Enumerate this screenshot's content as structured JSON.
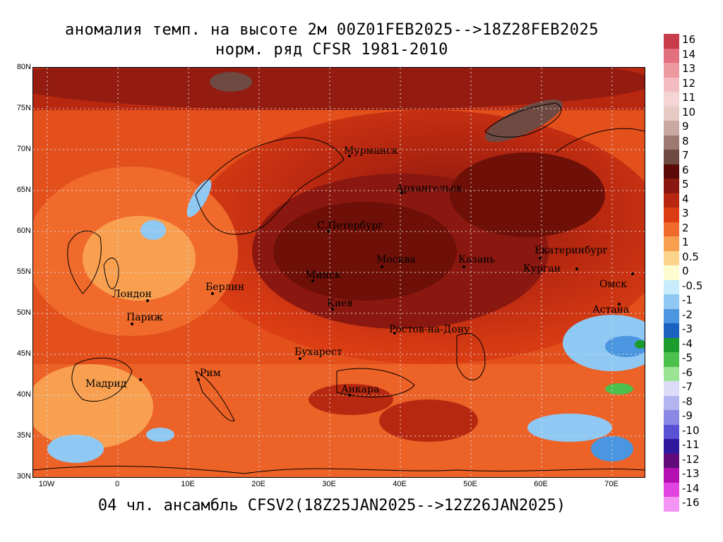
{
  "title_line1": "аномалия темп. на высоте 2м 00Z01FEB2025-->18Z28FEB2025",
  "title_line2": "норм. ряд CFSR 1981-2010",
  "footer": "04 чл. ансамбль CFSV2(18Z25JAN2025-->12Z26JAN2025)",
  "lat_labels": [
    "80N",
    "75N",
    "70N",
    "65N",
    "60N",
    "55N",
    "50N",
    "45N",
    "40N",
    "35N",
    "30N"
  ],
  "lon_labels": [
    "10W",
    "0",
    "10E",
    "20E",
    "30E",
    "40E",
    "50E",
    "60E",
    "70E"
  ],
  "cities": [
    {
      "name": "Мурманск"
    },
    {
      "name": "Архангельск"
    },
    {
      "name": "С.Петербург"
    },
    {
      "name": "Москва"
    },
    {
      "name": "Казань"
    },
    {
      "name": "Екатеринбург"
    },
    {
      "name": "Курган"
    },
    {
      "name": "Омск"
    },
    {
      "name": "Астана"
    },
    {
      "name": "Минск"
    },
    {
      "name": "Берлин"
    },
    {
      "name": "Лондон"
    },
    {
      "name": "Париж"
    },
    {
      "name": "Киев"
    },
    {
      "name": "Ростов-на-Дону"
    },
    {
      "name": "Бухарест"
    },
    {
      "name": "Рим"
    },
    {
      "name": "Мадрид"
    },
    {
      "name": "Анкара"
    }
  ],
  "legend": [
    {
      "label": "16",
      "color": "#c83c4c"
    },
    {
      "label": "14",
      "color": "#e2707e"
    },
    {
      "label": "13",
      "color": "#ee98a0"
    },
    {
      "label": "12",
      "color": "#f4bcc0"
    },
    {
      "label": "11",
      "color": "#f4d4d4"
    },
    {
      "label": "10",
      "color": "#e8cac4"
    },
    {
      "label": "9",
      "color": "#c8a8a0"
    },
    {
      "label": "8",
      "color": "#9c7a72"
    },
    {
      "label": "7",
      "color": "#6e4a42"
    },
    {
      "label": "6",
      "color": "#5c0a08"
    },
    {
      "label": "5",
      "color": "#8a1810"
    },
    {
      "label": "4",
      "color": "#b82810"
    },
    {
      "label": "3",
      "color": "#dc3e14"
    },
    {
      "label": "2",
      "color": "#f06a2c"
    },
    {
      "label": "1",
      "color": "#f8a050"
    },
    {
      "label": "0.5",
      "color": "#fcd48c"
    },
    {
      "label": "0",
      "color": "#fcfcd0"
    },
    {
      "label": "-0.5",
      "color": "#c8ecfc"
    },
    {
      "label": "-1",
      "color": "#90c8f4"
    },
    {
      "label": "-2",
      "color": "#4a96e0"
    },
    {
      "label": "-3",
      "color": "#1a62c0"
    },
    {
      "label": "-4",
      "color": "#1c9c2c"
    },
    {
      "label": "-5",
      "color": "#4cc04c"
    },
    {
      "label": "-6",
      "color": "#9ae494"
    },
    {
      "label": "-7",
      "color": "#dcdcf8"
    },
    {
      "label": "-8",
      "color": "#b4b4f0"
    },
    {
      "label": "-9",
      "color": "#8a8ae6"
    },
    {
      "label": "-10",
      "color": "#5a52d4"
    },
    {
      "label": "-11",
      "color": "#30189c"
    },
    {
      "label": "-12",
      "color": "#620a7a"
    },
    {
      "label": "-13",
      "color": "#b410b4"
    },
    {
      "label": "-14",
      "color": "#e244e2"
    },
    {
      "label": "-16",
      "color": "#f494f4"
    }
  ]
}
